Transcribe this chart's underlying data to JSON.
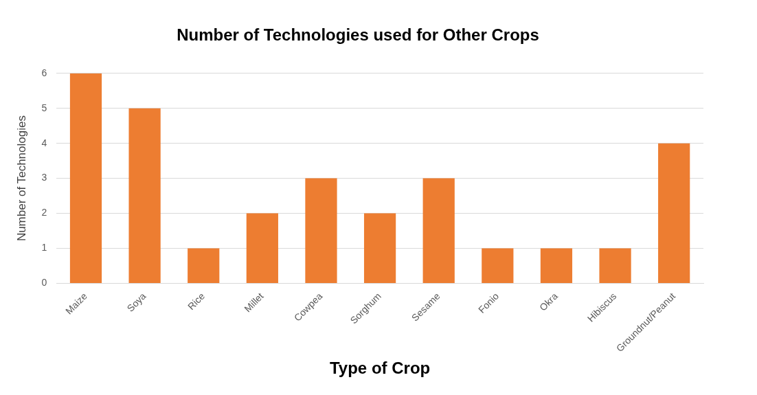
{
  "chart_data": {
    "type": "bar",
    "title": "Number of Technologies used for Other Crops",
    "xlabel": "Type of Crop",
    "ylabel": "Number of Technologies",
    "categories": [
      "Maize",
      "Soya",
      "Rice",
      "Millet",
      "Cowpea",
      "Sorghum",
      "Sesame",
      "Fonio",
      "Okra",
      "Hibiscus",
      "Groundnut/Peanut"
    ],
    "values": [
      6,
      5,
      1,
      2,
      3,
      2,
      3,
      1,
      1,
      1,
      4
    ],
    "color": "#ed7d31",
    "ylim": [
      0,
      6
    ],
    "yticks": [
      0,
      1,
      2,
      3,
      4,
      5,
      6
    ],
    "grid": "y"
  }
}
